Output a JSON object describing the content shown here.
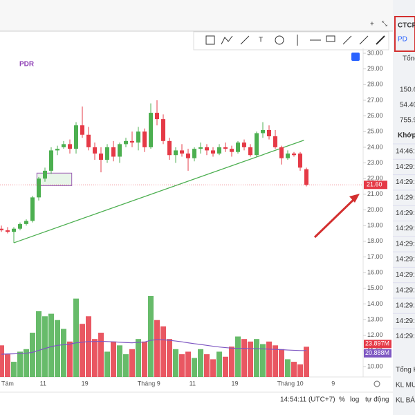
{
  "chart_data": {
    "type": "candlestick",
    "title": "PDR",
    "candles": [
      {
        "o": 18.8,
        "h": 19.0,
        "l": 18.6,
        "c": 18.7
      },
      {
        "o": 18.7,
        "h": 18.9,
        "l": 18.5,
        "c": 18.6
      },
      {
        "o": 18.6,
        "h": 18.9,
        "l": 17.9,
        "c": 18.8
      },
      {
        "o": 18.8,
        "h": 19.2,
        "l": 18.7,
        "c": 19.1
      },
      {
        "o": 19.1,
        "h": 19.4,
        "l": 19.0,
        "c": 19.3
      },
      {
        "o": 19.3,
        "h": 20.9,
        "l": 19.2,
        "c": 20.8
      },
      {
        "o": 20.8,
        "h": 22.1,
        "l": 20.6,
        "c": 22.0
      },
      {
        "o": 22.0,
        "h": 22.7,
        "l": 21.8,
        "c": 22.5
      },
      {
        "o": 22.5,
        "h": 24.0,
        "l": 22.3,
        "c": 23.8
      },
      {
        "o": 23.8,
        "h": 24.1,
        "l": 23.5,
        "c": 23.9
      },
      {
        "o": 24.0,
        "h": 24.4,
        "l": 23.9,
        "c": 24.2
      },
      {
        "o": 24.2,
        "h": 24.5,
        "l": 23.6,
        "c": 23.9
      },
      {
        "o": 23.9,
        "h": 25.6,
        "l": 23.6,
        "c": 25.4
      },
      {
        "o": 25.4,
        "h": 26.6,
        "l": 24.6,
        "c": 24.8
      },
      {
        "o": 24.8,
        "h": 25.3,
        "l": 23.8,
        "c": 24.0
      },
      {
        "o": 24.0,
        "h": 24.3,
        "l": 23.2,
        "c": 23.6
      },
      {
        "o": 23.6,
        "h": 24.0,
        "l": 22.4,
        "c": 23.2
      },
      {
        "o": 23.2,
        "h": 24.2,
        "l": 23.0,
        "c": 24.0
      },
      {
        "o": 24.0,
        "h": 24.4,
        "l": 23.1,
        "c": 23.4
      },
      {
        "o": 23.4,
        "h": 24.3,
        "l": 23.0,
        "c": 24.2
      },
      {
        "o": 24.2,
        "h": 24.6,
        "l": 24.0,
        "c": 24.4
      },
      {
        "o": 24.4,
        "h": 25.0,
        "l": 24.0,
        "c": 24.3
      },
      {
        "o": 24.3,
        "h": 25.3,
        "l": 23.8,
        "c": 25.0
      },
      {
        "o": 25.0,
        "h": 25.2,
        "l": 23.7,
        "c": 24.0
      },
      {
        "o": 24.0,
        "h": 26.8,
        "l": 23.9,
        "c": 26.2
      },
      {
        "o": 26.2,
        "h": 27.0,
        "l": 25.4,
        "c": 25.8
      },
      {
        "o": 25.8,
        "h": 26.1,
        "l": 24.2,
        "c": 24.4
      },
      {
        "o": 24.4,
        "h": 24.6,
        "l": 23.2,
        "c": 23.5
      },
      {
        "o": 23.5,
        "h": 24.0,
        "l": 23.0,
        "c": 23.8
      },
      {
        "o": 23.8,
        "h": 24.2,
        "l": 23.4,
        "c": 23.6
      },
      {
        "o": 23.6,
        "h": 23.9,
        "l": 22.5,
        "c": 23.3
      },
      {
        "o": 23.3,
        "h": 24.0,
        "l": 23.1,
        "c": 23.9
      },
      {
        "o": 23.9,
        "h": 24.3,
        "l": 23.6,
        "c": 24.0
      },
      {
        "o": 24.0,
        "h": 24.2,
        "l": 23.5,
        "c": 23.8
      },
      {
        "o": 23.8,
        "h": 24.0,
        "l": 23.4,
        "c": 23.6
      },
      {
        "o": 23.6,
        "h": 24.2,
        "l": 23.5,
        "c": 24.0
      },
      {
        "o": 24.0,
        "h": 24.3,
        "l": 23.7,
        "c": 23.9
      },
      {
        "o": 23.9,
        "h": 24.1,
        "l": 23.4,
        "c": 23.7
      },
      {
        "o": 23.7,
        "h": 24.4,
        "l": 23.6,
        "c": 24.3
      },
      {
        "o": 24.3,
        "h": 24.5,
        "l": 23.8,
        "c": 24.0
      },
      {
        "o": 24.0,
        "h": 24.2,
        "l": 23.4,
        "c": 23.5
      },
      {
        "o": 23.5,
        "h": 25.0,
        "l": 23.4,
        "c": 24.9
      },
      {
        "o": 24.9,
        "h": 25.6,
        "l": 24.6,
        "c": 25.1
      },
      {
        "o": 25.1,
        "h": 25.4,
        "l": 24.5,
        "c": 24.7
      },
      {
        "o": 24.7,
        "h": 25.1,
        "l": 23.9,
        "c": 24.0
      },
      {
        "o": 24.0,
        "h": 24.1,
        "l": 22.9,
        "c": 23.3
      },
      {
        "o": 23.3,
        "h": 23.8,
        "l": 23.2,
        "c": 23.6
      },
      {
        "o": 23.6,
        "h": 23.7,
        "l": 23.4,
        "c": 23.5
      },
      {
        "o": 23.6,
        "h": 23.7,
        "l": 22.5,
        "c": 22.7
      },
      {
        "o": 22.6,
        "h": 22.7,
        "l": 21.5,
        "c": 21.6
      }
    ],
    "volumes": [
      25,
      18,
      12,
      20,
      22,
      35,
      52,
      48,
      50,
      45,
      38,
      28,
      62,
      42,
      48,
      30,
      35,
      20,
      28,
      25,
      18,
      22,
      30,
      28,
      64,
      45,
      40,
      30,
      22,
      18,
      20,
      15,
      22,
      18,
      14,
      20,
      16,
      24,
      32,
      30,
      28,
      30,
      26,
      28,
      25,
      22,
      14,
      12,
      10,
      23.897
    ],
    "volume_ma": [
      18,
      18.2,
      18.3,
      18.5,
      18.8,
      19.5,
      21,
      22.5,
      24,
      25,
      25.5,
      26,
      27,
      27.5,
      28,
      28,
      28.2,
      28,
      27.8,
      27.5,
      27.2,
      27,
      27.4,
      27.6,
      29,
      29.5,
      29.4,
      29,
      28.4,
      27.8,
      27,
      26.3,
      25.7,
      25,
      24.3,
      23.7,
      23.2,
      22.8,
      22.6,
      22.5,
      22.4,
      22.3,
      22.2,
      22,
      21.8,
      21.6,
      21.3,
      21.1,
      20.9,
      20.888
    ],
    "volume_labels": [
      {
        "value": 23.897,
        "label": "23.897M"
      },
      {
        "value": 20.888,
        "label": "20.888M"
      }
    ],
    "vlim": [
      0,
      64
    ],
    "colors": {
      "up": "#4caf50",
      "down": "#e53946",
      "ma": "#7e57c2",
      "trend": "#4caf50"
    },
    "ylim": [
      10,
      30
    ],
    "yticks": [
      {
        "value": 30,
        "label": "30.00"
      },
      {
        "value": 29,
        "label": "29.00"
      },
      {
        "value": 28,
        "label": "28.00"
      },
      {
        "value": 27,
        "label": "27.00"
      },
      {
        "value": 26,
        "label": "26.00"
      },
      {
        "value": 25,
        "label": "25.00"
      },
      {
        "value": 24,
        "label": "24.00"
      },
      {
        "value": 23,
        "label": "23.00"
      },
      {
        "value": 22,
        "label": "22.00"
      },
      {
        "value": 21,
        "label": "21.00"
      },
      {
        "value": 20,
        "label": "20.00"
      },
      {
        "value": 19,
        "label": "19.00"
      },
      {
        "value": 18,
        "label": "18.00"
      },
      {
        "value": 17,
        "label": "17.00"
      },
      {
        "value": 16,
        "label": "16.00"
      },
      {
        "value": 15,
        "label": "15.00"
      },
      {
        "value": 14,
        "label": "14.00"
      },
      {
        "value": 13,
        "label": "13.00"
      },
      {
        "value": 12,
        "label": "12.00"
      },
      {
        "value": 11,
        "label": "11.00"
      },
      {
        "value": 10,
        "label": "10.00"
      }
    ],
    "last_price": {
      "value": 21.6,
      "label": "21.60"
    },
    "trendline": [
      [
        2,
        17.9
      ],
      [
        48.6,
        24.45
      ]
    ],
    "box": [
      [
        5.7,
        22.35
      ],
      [
        11.3,
        21.55
      ]
    ],
    "x_labels": [
      {
        "label": "ng Tám",
        "at": 0.3
      },
      {
        "label": "11",
        "at": 6.7
      },
      {
        "label": "19",
        "at": 13.4
      },
      {
        "label": "Tháng 9",
        "at": 23.7
      },
      {
        "label": "11",
        "at": 30.7
      },
      {
        "label": "19",
        "at": 37.5
      },
      {
        "label": "Tháng 10",
        "at": 46.4
      },
      {
        "label": "9",
        "at": 53.3
      }
    ]
  },
  "footer": {
    "time": "14:54:11 (UTC+7)",
    "percent": "%",
    "log": "log",
    "auto": "tự động"
  },
  "panel": {
    "title": "CTCP",
    "sub": "PD",
    "total": "Tổng",
    "numbers": [
      "150.6",
      "54.40",
      "755.9"
    ],
    "match": "Khớp",
    "times": [
      "14:46:3",
      "14:29:",
      "14:29:",
      "14:29:",
      "14:29:",
      "14:29:",
      "14:29:",
      "14:29:",
      "14:29:",
      "14:29:",
      "14:29:",
      "14:29:",
      "14:29:"
    ],
    "bottom": [
      "Tổng K",
      "KL MU",
      "KL BÁ"
    ]
  }
}
